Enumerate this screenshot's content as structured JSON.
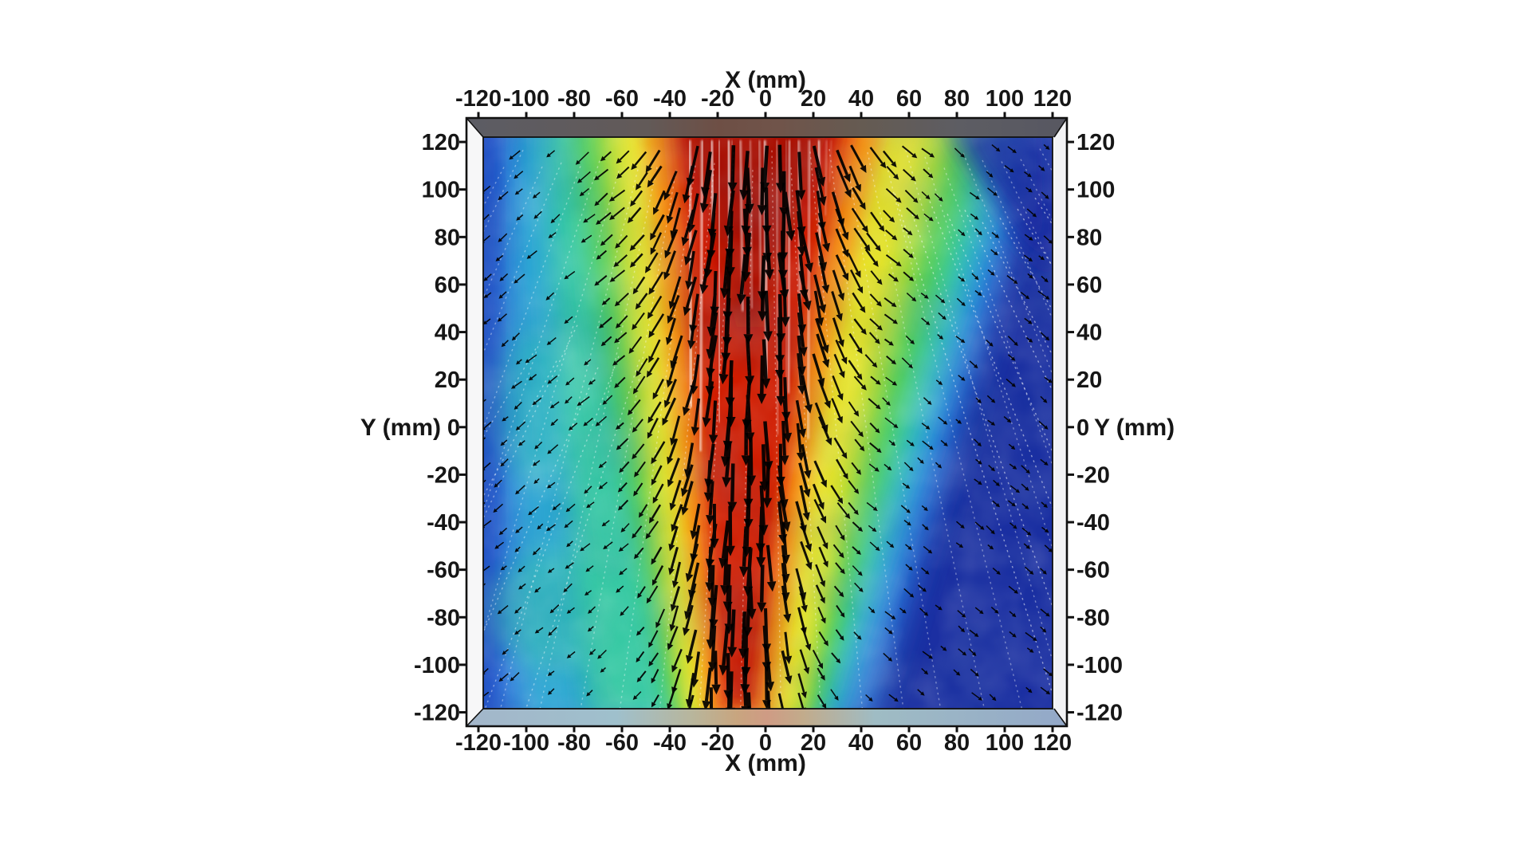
{
  "figure": {
    "background": "#ffffff",
    "axes": {
      "x_top": {
        "title": "X (mm)",
        "ticks": [
          "-120",
          "-100",
          "-80",
          "-60",
          "-40",
          "-20",
          "0",
          "20",
          "40",
          "60",
          "80",
          "100",
          "120"
        ]
      },
      "x_bottom": {
        "title": "X (mm)",
        "ticks": [
          "-120",
          "-100",
          "-80",
          "-60",
          "-40",
          "-20",
          "0",
          "20",
          "40",
          "60",
          "80",
          "100",
          "120"
        ]
      },
      "y_left": {
        "title": "Y (mm)",
        "ticks": [
          "120",
          "100",
          "80",
          "60",
          "40",
          "20",
          "0",
          "-20",
          "-40",
          "-60",
          "-80",
          "-100",
          "-120"
        ]
      },
      "y_right": {
        "title": "Y (mm)",
        "ticks": [
          "120",
          "100",
          "80",
          "60",
          "40",
          "20",
          "0",
          "-20",
          "-40",
          "-60",
          "-80",
          "-100",
          "-120"
        ]
      }
    }
  },
  "chart_data": {
    "type": "heatmap",
    "subtype": "2d-velocity-magnitude-field-with-vector-glyphs",
    "title": "",
    "xlabel": "X (mm)",
    "ylabel": "Y (mm)",
    "x_range": [
      -130,
      130
    ],
    "y_range": [
      -130,
      130
    ],
    "x_tick_values": [
      -120,
      -100,
      -80,
      -60,
      -40,
      -20,
      0,
      20,
      40,
      60,
      80,
      100,
      120
    ],
    "y_tick_values": [
      120,
      100,
      80,
      60,
      40,
      20,
      0,
      -20,
      -40,
      -60,
      -80,
      -100,
      -120
    ],
    "grid": false,
    "legend": "none (no colorbar shown)",
    "colormap": {
      "name": "jet-like (blue → cyan → green → yellow → orange → red)",
      "stops": [
        "#1b2fa2",
        "#2053cc",
        "#2e7de0",
        "#2fa9d4",
        "#38c9a4",
        "#55cd5a",
        "#b5dc35",
        "#e7e32a",
        "#f59a18",
        "#e85a0e",
        "#d01f06",
        "#a81000"
      ]
    },
    "field_model": {
      "description": "Downward-directed jet entering at top center: dark-red high-speed core near x ≈ -10 mm, widest at the top (half-width ≈ 30 mm) and narrowing toward the bottom (half-width ≈ 8 mm); speed decays radially through orange, yellow, green, cyan to ambient deep blue for |x| > 80 mm (deepest blue in the upper-right and lower-right). Black arrow glyphs point straight down in the core and fan outward (down-left on the left half, down-right on the right half); arrow length scales with speed. Faint white dashed pathlines fan outward from the top center and thin white vertical streaks mark the upper core.",
      "jet_center_x_mm": {
        "top": -2,
        "bottom": -13
      },
      "core_halfwidth_mm": {
        "top": 30,
        "bottom": 8
      },
      "arrow_color": "#000000",
      "pathline_color": "#ffffff"
    },
    "frame": {
      "style": "3D box (render-view style): dark gray top face, pale blue-gray bottom face with tan center, white side faces, black edges with outward tick marks"
    }
  }
}
